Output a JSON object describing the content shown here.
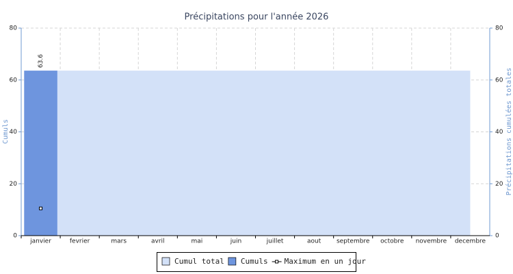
{
  "chart_data": {
    "type": "bar",
    "title": "Précipitations pour l'année 2026",
    "y_label": "Cumuls",
    "y2_label": "Précipitations cumulées totales",
    "categories": [
      "janvier",
      "fevrier",
      "mars",
      "avril",
      "mai",
      "juin",
      "juillet",
      "aout",
      "septembre",
      "octobre",
      "novembre",
      "decembre"
    ],
    "series": [
      {
        "name": "Cumul total",
        "type": "area",
        "axis": "y2",
        "color": "#d3e1f8",
        "values": [
          63.6,
          63.6,
          63.6,
          63.6,
          63.6,
          63.6,
          63.6,
          63.6,
          63.6,
          63.6,
          63.6,
          63.6
        ]
      },
      {
        "name": "Cumuls",
        "type": "bar",
        "color": "#6e95de",
        "values": [
          63.6,
          0,
          0,
          0,
          0,
          0,
          0,
          0,
          0,
          0,
          0,
          0
        ]
      },
      {
        "name": "Maximum en un jour",
        "type": "point",
        "color": "#000000",
        "values": [
          10.5,
          null,
          null,
          null,
          null,
          null,
          null,
          null,
          null,
          null,
          null,
          null
        ]
      }
    ],
    "ylim": [
      0,
      80
    ],
    "yticks": [
      0,
      20,
      40,
      60,
      80
    ],
    "y2lim": [
      0,
      80
    ],
    "y2ticks": [
      0,
      20,
      40,
      60,
      80
    ],
    "grid": true
  }
}
